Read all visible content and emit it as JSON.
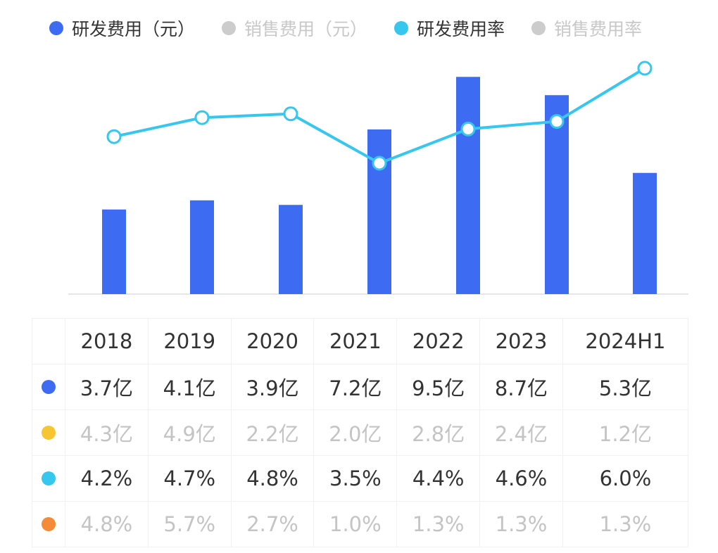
{
  "legend": [
    {
      "label": "研发费用（元）",
      "color": "#3d6cf2",
      "active": true
    },
    {
      "label": "销售费用（元）",
      "color": "#cccccc",
      "active": false
    },
    {
      "label": "研发费用率",
      "color": "#36c6ee",
      "active": true
    },
    {
      "label": "销售费用率",
      "color": "#cccccc",
      "active": false
    }
  ],
  "chart_data": {
    "type": "bar+line",
    "categories": [
      "2018",
      "2019",
      "2020",
      "2021",
      "2022",
      "2023",
      "2024H1"
    ],
    "series": [
      {
        "name": "研发费用（元）",
        "type": "bar",
        "unit": "亿",
        "color": "#3d6cf2",
        "values": [
          3.7,
          4.1,
          3.9,
          7.2,
          9.5,
          8.7,
          5.3
        ]
      },
      {
        "name": "研发费用率",
        "type": "line",
        "unit": "%",
        "color": "#36c6ee",
        "values": [
          4.2,
          4.7,
          4.8,
          3.5,
          4.4,
          4.6,
          6.0
        ]
      }
    ],
    "grid": false,
    "legend_position": "top"
  },
  "table": {
    "header": [
      "2018",
      "2019",
      "2020",
      "2021",
      "2022",
      "2023",
      "2024H1"
    ],
    "rows": [
      {
        "color": "#3d6cf2",
        "dim": false,
        "cells": [
          "3.7亿",
          "4.1亿",
          "3.9亿",
          "7.2亿",
          "9.5亿",
          "8.7亿",
          "5.3亿"
        ]
      },
      {
        "color": "#f7c531",
        "dim": true,
        "cells": [
          "4.3亿",
          "4.9亿",
          "2.2亿",
          "2.0亿",
          "2.8亿",
          "2.4亿",
          "1.2亿"
        ]
      },
      {
        "color": "#36c6ee",
        "dim": false,
        "cells": [
          "4.2%",
          "4.7%",
          "4.8%",
          "3.5%",
          "4.4%",
          "4.6%",
          "6.0%"
        ]
      },
      {
        "color": "#f58b36",
        "dim": true,
        "cells": [
          "4.8%",
          "5.7%",
          "2.7%",
          "1.0%",
          "1.3%",
          "1.3%",
          "1.3%"
        ]
      }
    ]
  }
}
